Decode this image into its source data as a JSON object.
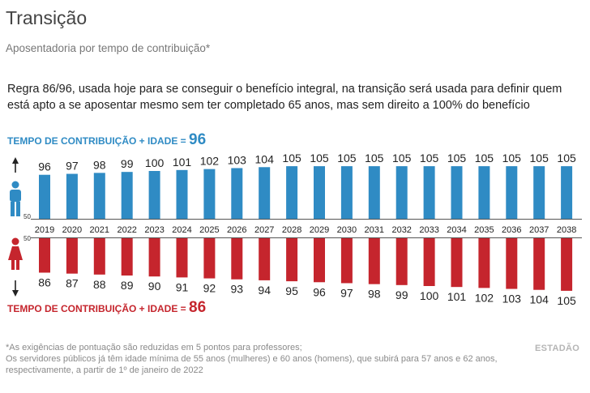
{
  "header": {
    "title": "Transição",
    "subtitle": "Aposentadoria por tempo de contribuição*",
    "description": "Regra 86/96, usada hoje para se conseguir o benefício integral, na transição será usada para definir quem está apto a se aposentar mesmo sem ter completado 65 anos, mas sem direito a 100% do benefício"
  },
  "labels": {
    "men_prefix": "TEMPO DE CONTRIBUIÇÃO + IDADE = ",
    "men_value": "96",
    "women_prefix": "TEMPO DE CONTRIBUIÇÃO + IDADE = ",
    "women_value": "86"
  },
  "footnote": {
    "line1": "*As exigências de pontuação são reduzidas em 5 pontos para professores;",
    "line2": "Os servidores públicos já têm idade mínima de 55 anos (mulheres) e 60 anos (homens), que subirá para 57 anos e 62 anos, respectivamente, a partir de 1º de janeiro de 2022"
  },
  "brand": "ESTADÃO",
  "colors": {
    "men": "#2f8bc4",
    "women": "#c5252d",
    "year_text": "#222222"
  },
  "icons": {
    "men": "man-figure-icon",
    "women": "woman-figure-icon",
    "up_arrow": "arrow-up-icon",
    "down_arrow": "arrow-down-icon"
  },
  "chart_data": {
    "type": "bar",
    "axis_baseline": 50,
    "axis_baseline_label": "50",
    "categories": [
      "2019",
      "2020",
      "2021",
      "2022",
      "2023",
      "2024",
      "2025",
      "2026",
      "2027",
      "2028",
      "2029",
      "2030",
      "2031",
      "2032",
      "2033",
      "2034",
      "2035",
      "2036",
      "2037",
      "2038"
    ],
    "series": [
      {
        "name": "",
        "direction": "up",
        "color": "#2f8bc4",
        "values": [
          96,
          97,
          98,
          99,
          100,
          101,
          102,
          103,
          104,
          105,
          105,
          105,
          105,
          105,
          105,
          105,
          105,
          105,
          105,
          105
        ]
      },
      {
        "name": "",
        "direction": "down",
        "color": "#c5252d",
        "values": [
          86,
          87,
          88,
          89,
          90,
          91,
          92,
          93,
          94,
          95,
          96,
          97,
          98,
          99,
          100,
          101,
          102,
          103,
          104,
          105
        ]
      }
    ]
  }
}
